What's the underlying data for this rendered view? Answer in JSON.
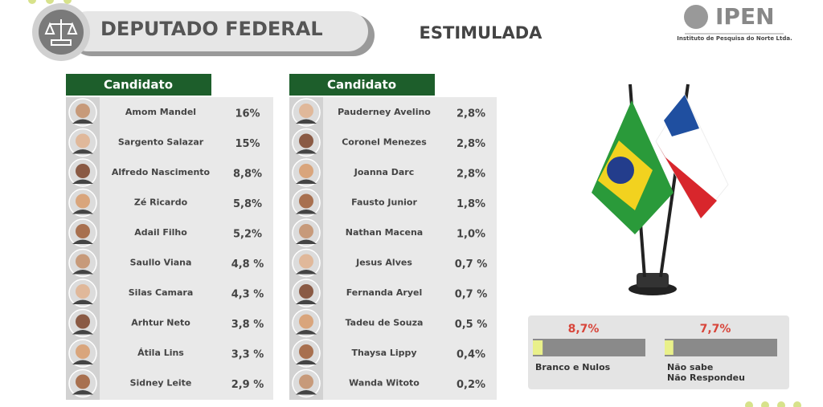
{
  "header": {
    "title": "DEPUTADO FEDERAL",
    "subtitle": "ESTIMULADA"
  },
  "logo": {
    "name": "IPEN",
    "tagline": "Instituto de Pesquisa do Norte Ltda."
  },
  "tables": [
    {
      "header": "Candidato",
      "rows": [
        {
          "name": "Amom Mandel",
          "pct": "16%"
        },
        {
          "name": "Sargento Salazar",
          "pct": "15%"
        },
        {
          "name": "Alfredo Nascimento",
          "pct": "8,8%"
        },
        {
          "name": "Zé Ricardo",
          "pct": "5,8%"
        },
        {
          "name": "Adail Filho",
          "pct": "5,2%"
        },
        {
          "name": "Saullo Viana",
          "pct": "4,8 %"
        },
        {
          "name": "Silas Camara",
          "pct": "4,3 %"
        },
        {
          "name": "Arhtur Neto",
          "pct": "3,8 %"
        },
        {
          "name": "Átila Lins",
          "pct": "3,3 %"
        },
        {
          "name": "Sidney Leite",
          "pct": "2,9 %"
        }
      ]
    },
    {
      "header": "Candidato",
      "rows": [
        {
          "name": "Pauderney Avelino",
          "pct": "2,8%"
        },
        {
          "name": "Coronel Menezes",
          "pct": "2,8%"
        },
        {
          "name": "Joanna Darc",
          "pct": "2,8%"
        },
        {
          "name": "Fausto Junior",
          "pct": "1,8%"
        },
        {
          "name": "Nathan Macena",
          "pct": "1,0%"
        },
        {
          "name": "Jesus Alves",
          "pct": "0,7 %"
        },
        {
          "name": "Fernanda Aryel",
          "pct": "0,7 %"
        },
        {
          "name": "Tadeu de Souza",
          "pct": "0,5 %"
        },
        {
          "name": "Thaysa Lippy",
          "pct": "0,4%"
        },
        {
          "name": "Wanda Witoto",
          "pct": "0,2%"
        }
      ]
    }
  ],
  "summary": [
    {
      "value": 8.7,
      "label": "8,7%",
      "caption": [
        "Branco e Nulos"
      ]
    },
    {
      "value": 7.7,
      "label": "7,7%",
      "caption": [
        "Não sabe",
        "Não Respondeu"
      ]
    }
  ]
}
